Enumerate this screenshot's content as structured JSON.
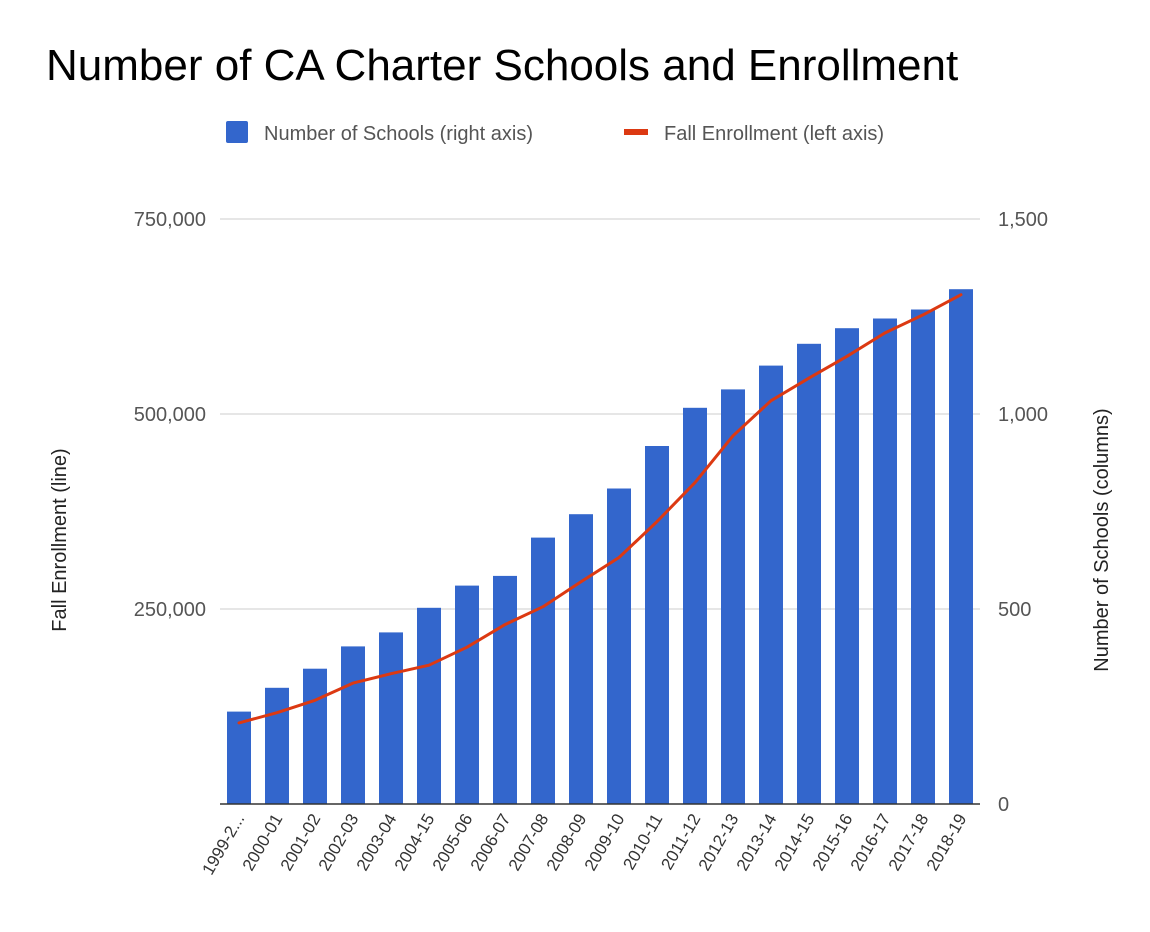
{
  "colors": {
    "bar": "#3366cc",
    "line": "#dc3912",
    "grid": "#cccccc",
    "baseline": "#333333"
  },
  "chart_data": {
    "type": "bar",
    "title": "Number of CA Charter Schools and Enrollment",
    "legend_position": "top-center",
    "legend": {
      "bar_label": "Number of Schools (right axis)",
      "line_label": "Fall Enrollment (left axis)"
    },
    "grid": true,
    "categories": [
      "1999-2...",
      "2000-01",
      "2001-02",
      "2002-03",
      "2003-04",
      "2004-15",
      "2005-06",
      "2006-07",
      "2007-08",
      "2008-09",
      "2009-10",
      "2010-11",
      "2011-12",
      "2012-13",
      "2013-14",
      "2014-15",
      "2015-16",
      "2016-17",
      "2017-18",
      "2018-19"
    ],
    "series": [
      {
        "name": "Number of Schools (right axis)",
        "type": "bar",
        "axis": "right",
        "values": [
          237,
          298,
          347,
          404,
          440,
          503,
          560,
          585,
          683,
          743,
          809,
          918,
          1016,
          1063,
          1124,
          1180,
          1220,
          1245,
          1268,
          1320
        ]
      },
      {
        "name": "Fall Enrollment (left axis)",
        "type": "line",
        "axis": "left",
        "values": [
          104000,
          117000,
          133000,
          155000,
          167000,
          178000,
          201000,
          230000,
          253000,
          285000,
          316000,
          362000,
          412000,
          472000,
          517000,
          546000,
          574000,
          604000,
          627000,
          653000
        ]
      }
    ],
    "y_left": {
      "label": "Fall Enrollment (line)",
      "range": [
        0,
        750000
      ],
      "ticks": [
        "",
        "250,000",
        "500,000",
        "750,000"
      ]
    },
    "y_right": {
      "label": "Number of Schools (columns)",
      "range": [
        0,
        1500
      ],
      "ticks": [
        "0",
        "500",
        "1,000",
        "1,500"
      ]
    }
  }
}
